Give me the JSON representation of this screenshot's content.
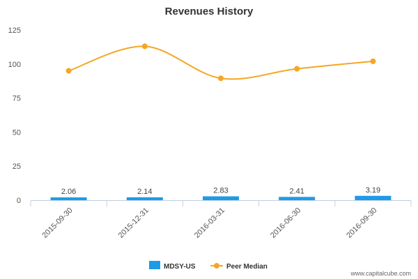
{
  "chart_data": {
    "type": "bar",
    "title": "Revenues History",
    "categories": [
      "2015-09-30",
      "2015-12-31",
      "2016-03-31",
      "2016-06-30",
      "2016-09-30"
    ],
    "series": [
      {
        "name": "MDSY-US",
        "type": "bar",
        "values": [
          2.06,
          2.14,
          2.83,
          2.41,
          3.19
        ],
        "color": "#1e9be8",
        "labels": [
          "2.06",
          "2.14",
          "2.83",
          "2.41",
          "3.19"
        ]
      },
      {
        "name": "Peer Median",
        "type": "line",
        "values": [
          95,
          113,
          89.5,
          96.5,
          102
        ],
        "color": "#f5a623"
      }
    ],
    "ylim": [
      0,
      125
    ],
    "yticks": [
      "0",
      "25",
      "50",
      "75",
      "100",
      "125"
    ],
    "ytick_values": [
      0,
      25,
      50,
      75,
      100,
      125
    ],
    "grid": false,
    "legend": "bottom-center"
  },
  "credit": "www.capitalcube.com"
}
